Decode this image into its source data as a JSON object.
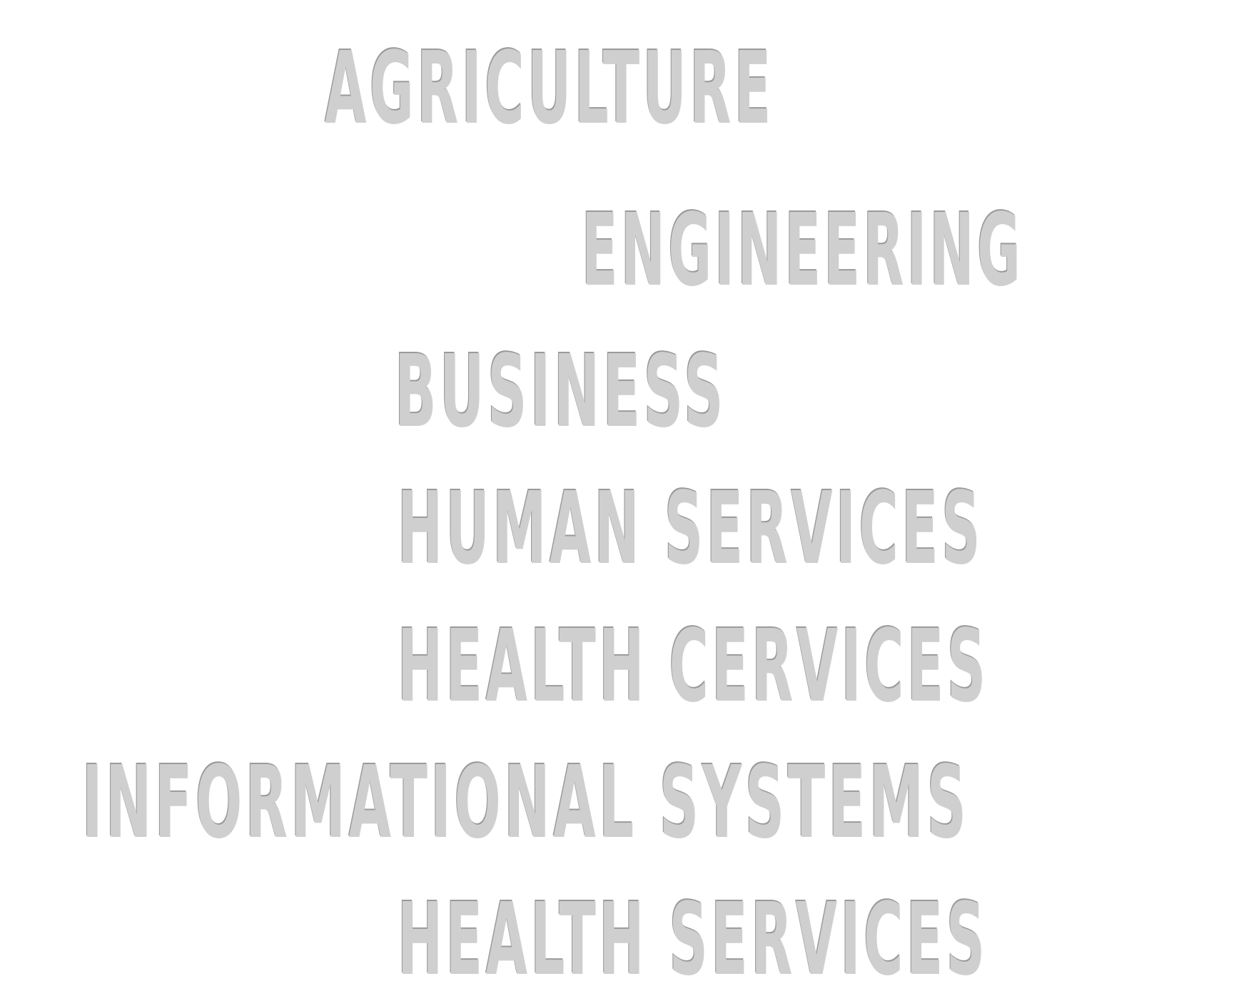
{
  "words": [
    "AGRICULTURE",
    "ENGINEERING",
    "BUSINESS",
    "HUMAN SERVICES",
    "HEALTH CERVICES",
    "INFORMATIONAL SYSTEMS",
    "HEALTH SERVICES"
  ],
  "colors": {
    "background": "#ffffff",
    "text": "#cfcfcf",
    "shadow": "#9a9a9a"
  }
}
